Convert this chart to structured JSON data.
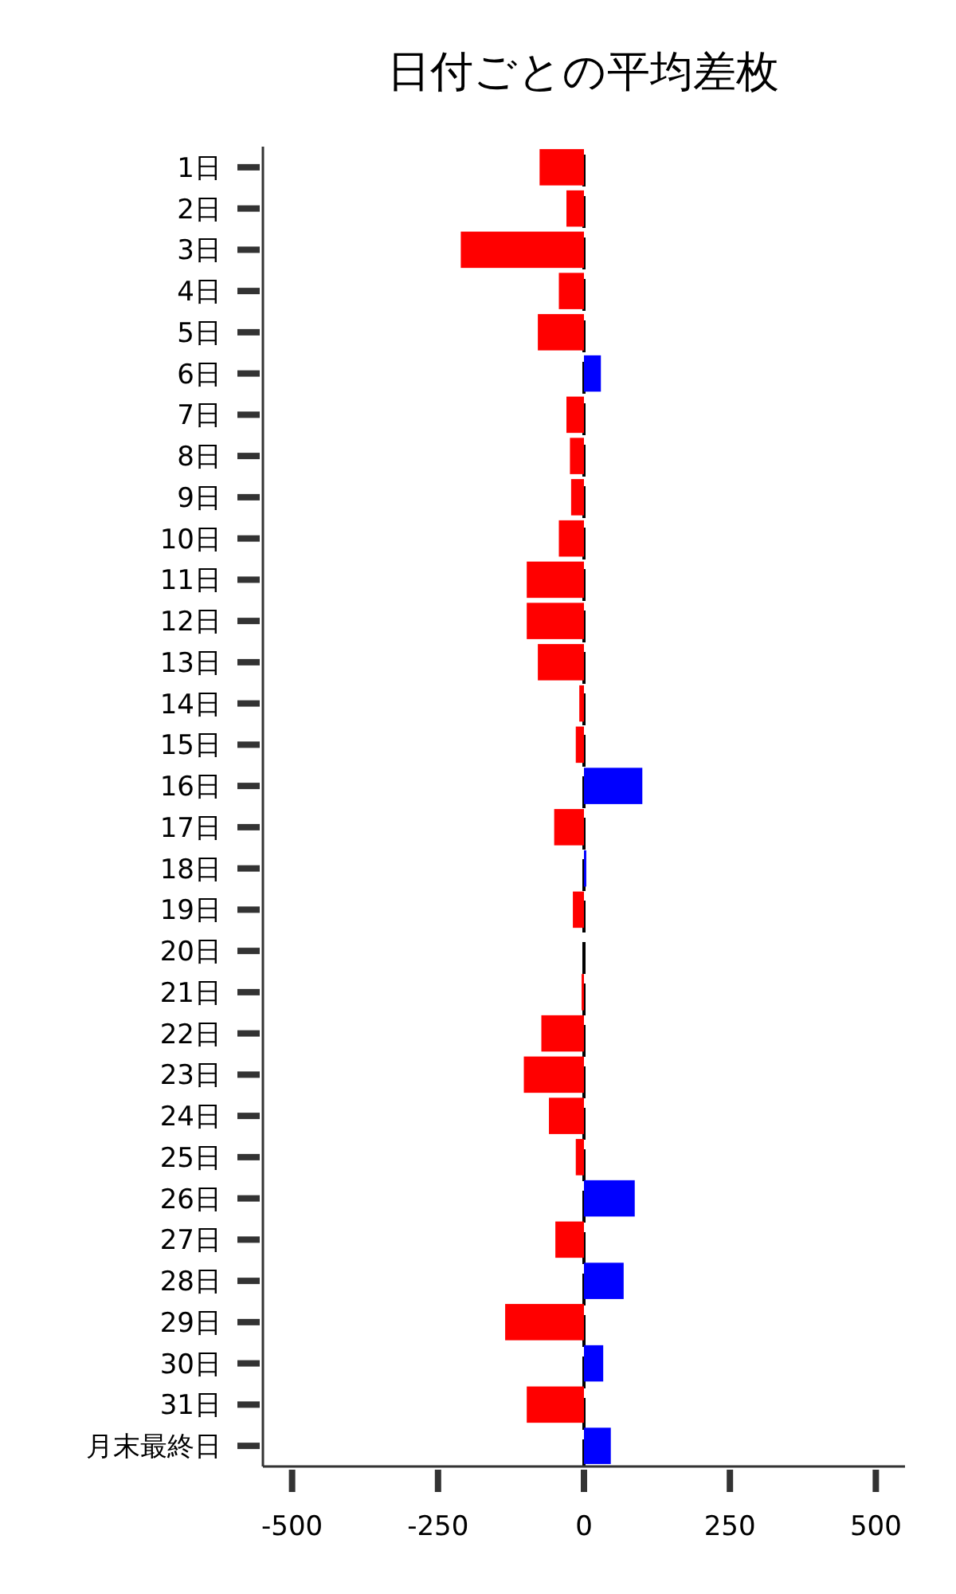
{
  "chart_data": {
    "type": "bar",
    "orientation": "horizontal",
    "title": "日付ごとの平均差枚",
    "categories": [
      "1日",
      "2日",
      "3日",
      "4日",
      "5日",
      "6日",
      "7日",
      "8日",
      "9日",
      "10日",
      "11日",
      "12日",
      "13日",
      "14日",
      "15日",
      "16日",
      "17日",
      "18日",
      "19日",
      "20日",
      "21日",
      "22日",
      "23日",
      "24日",
      "25日",
      "26日",
      "27日",
      "28日",
      "29日",
      "30日",
      "31日",
      "月末最終日"
    ],
    "values": [
      -76,
      -30,
      -211,
      -43,
      -79,
      29,
      -30,
      -24,
      -22,
      -43,
      -98,
      -98,
      -79,
      -8,
      -14,
      100,
      -51,
      4,
      -19,
      0,
      -4,
      -73,
      -103,
      -60,
      -14,
      87,
      -49,
      68,
      -135,
      33,
      -98,
      46
    ],
    "colors": [
      "#ff0000",
      "#ff0000",
      "#ff0000",
      "#ff0000",
      "#ff0000",
      "#0000ff",
      "#ff0000",
      "#ff0000",
      "#ff0000",
      "#ff0000",
      "#ff0000",
      "#ff0000",
      "#ff0000",
      "#ff0000",
      "#ff0000",
      "#0000ff",
      "#ff0000",
      "#0000ff",
      "#ff0000",
      "#ff0000",
      "#ff0000",
      "#ff0000",
      "#ff0000",
      "#ff0000",
      "#ff0000",
      "#0000ff",
      "#ff0000",
      "#0000ff",
      "#ff0000",
      "#0000ff",
      "#ff0000",
      "#0000ff"
    ],
    "xlim": [
      -550,
      550
    ],
    "xticks": [
      -500,
      -250,
      0,
      250,
      500
    ],
    "ref_lines": [
      {
        "axis": "x",
        "value": 0,
        "color": "#000000",
        "line_style": "dashed"
      }
    ]
  }
}
